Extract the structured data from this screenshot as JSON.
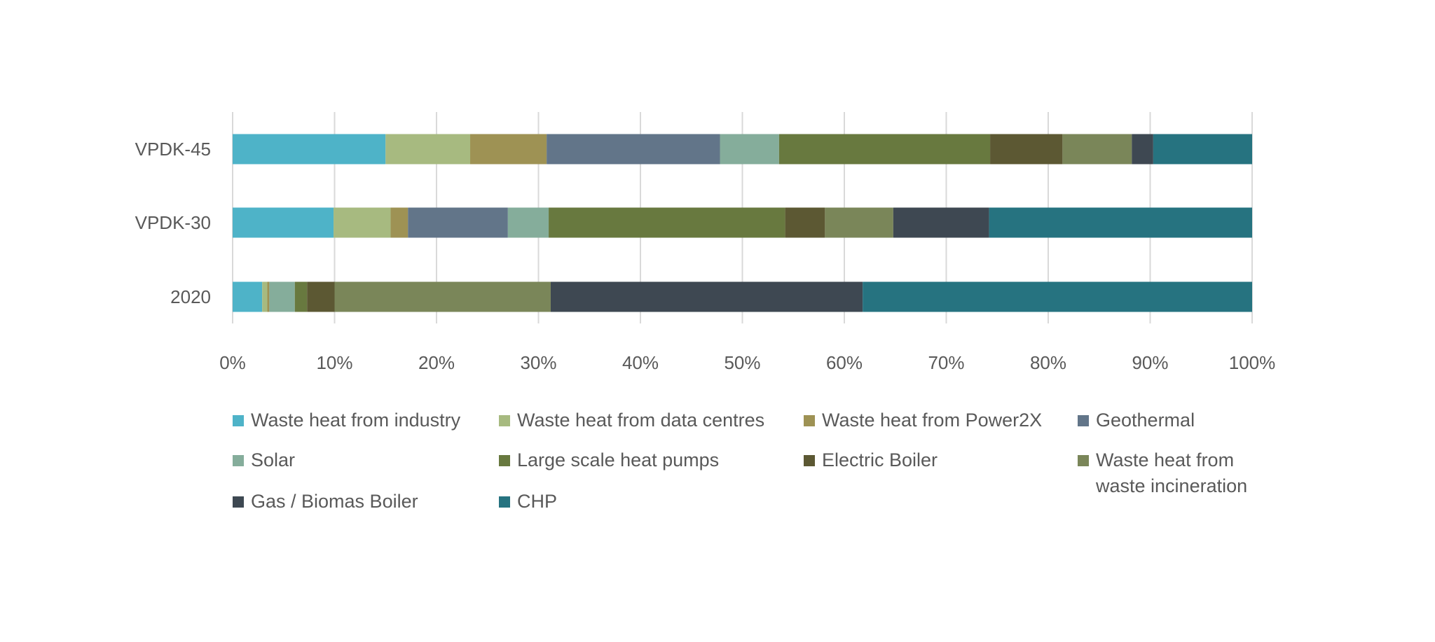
{
  "chart_data": {
    "type": "bar",
    "orientation": "horizontal",
    "stacked": "100%",
    "categories": [
      "VPDK-45",
      "VPDK-30",
      "2020"
    ],
    "series": [
      {
        "name": "Waste heat from industry",
        "color": "#4EB3C8",
        "values": [
          15.0,
          9.9,
          2.9
        ]
      },
      {
        "name": "Waste heat from data centres",
        "color": "#A7BA80",
        "values": [
          8.3,
          5.6,
          0.5
        ]
      },
      {
        "name": "Waste heat from Power2X",
        "color": "#9E9254",
        "values": [
          7.5,
          1.7,
          0.2
        ]
      },
      {
        "name": "Geothermal",
        "color": "#627589",
        "values": [
          17.0,
          9.8,
          0.0
        ]
      },
      {
        "name": "Solar",
        "color": "#85AD9B",
        "values": [
          5.8,
          4.0,
          2.5
        ]
      },
      {
        "name": "Large scale heat pumps",
        "color": "#68793F",
        "values": [
          20.7,
          23.2,
          1.2
        ]
      },
      {
        "name": "Electric Boiler",
        "color": "#5C5833",
        "values": [
          7.1,
          3.9,
          2.7
        ]
      },
      {
        "name": "Waste heat from waste incineration",
        "color": "#7A8659",
        "values": [
          6.8,
          6.7,
          21.2
        ]
      },
      {
        "name": "Gas / Biomas Boiler",
        "color": "#3E4852",
        "values": [
          2.1,
          9.4,
          30.6
        ]
      },
      {
        "name": "CHP",
        "color": "#267380",
        "values": [
          9.7,
          25.8,
          38.2
        ]
      }
    ],
    "xlim": [
      0,
      100
    ],
    "xticks": [
      "0%",
      "10%",
      "20%",
      "30%",
      "40%",
      "50%",
      "60%",
      "70%",
      "80%",
      "90%",
      "100%"
    ],
    "title": "",
    "xlabel": "",
    "ylabel": "",
    "grid": "vertical",
    "legend_position": "bottom"
  },
  "legend": {
    "items": [
      {
        "label": "Waste heat from industry",
        "color": "#4EB3C8"
      },
      {
        "label": "Waste heat from data centres",
        "color": "#A7BA80"
      },
      {
        "label": "Waste heat from Power2X",
        "color": "#9E9254"
      },
      {
        "label": "Geothermal",
        "color": "#627589"
      },
      {
        "label": "Solar",
        "color": "#85AD9B"
      },
      {
        "label": "Large scale heat pumps",
        "color": "#68793F"
      },
      {
        "label": "Electric Boiler",
        "color": "#5C5833"
      },
      {
        "label": "Waste heat from waste incineration",
        "color": "#7A8659"
      },
      {
        "label": "Gas / Biomas Boiler",
        "color": "#3E4852"
      },
      {
        "label": "CHP",
        "color": "#267380"
      }
    ]
  }
}
